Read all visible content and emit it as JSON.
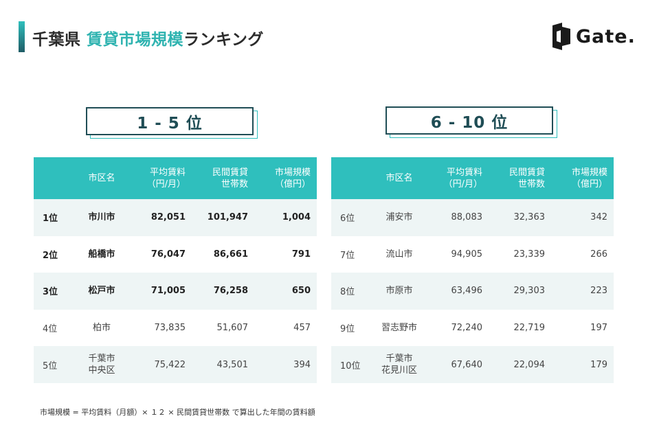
{
  "header": {
    "title_prefix": "千葉県",
    "title_highlight": "賃貸市場規模",
    "title_suffix": "ランキング",
    "logo_text": "Gate."
  },
  "colors": {
    "accent": "#2fbfbd",
    "dark": "#1f4d55",
    "row_alt": "#eef5f5"
  },
  "columns": {
    "city": "市区名",
    "rent_line1": "平均賃料",
    "rent_line2": "（円/月）",
    "households_line1": "民間賃貸",
    "households_line2": "世帯数",
    "market_line1": "市場規模",
    "market_line2": "（億円）"
  },
  "left_section": {
    "label": "1 - 5 位",
    "rows": [
      {
        "rank": "1位",
        "city_line1": "市川市",
        "city_line2": "",
        "rent": "82,051",
        "households": "101,947",
        "market": "1,004"
      },
      {
        "rank": "2位",
        "city_line1": "船橋市",
        "city_line2": "",
        "rent": "76,047",
        "households": "86,661",
        "market": "791"
      },
      {
        "rank": "3位",
        "city_line1": "松戸市",
        "city_line2": "",
        "rent": "71,005",
        "households": "76,258",
        "market": "650"
      },
      {
        "rank": "4位",
        "city_line1": "柏市",
        "city_line2": "",
        "rent": "73,835",
        "households": "51,607",
        "market": "457"
      },
      {
        "rank": "5位",
        "city_line1": "千葉市",
        "city_line2": "中央区",
        "rent": "75,422",
        "households": "43,501",
        "market": "394"
      }
    ]
  },
  "right_section": {
    "label": "6 - 10 位",
    "rows": [
      {
        "rank": "6位",
        "city_line1": "浦安市",
        "city_line2": "",
        "rent": "88,083",
        "households": "32,363",
        "market": "342"
      },
      {
        "rank": "7位",
        "city_line1": "流山市",
        "city_line2": "",
        "rent": "94,905",
        "households": "23,339",
        "market": "266"
      },
      {
        "rank": "8位",
        "city_line1": "市原市",
        "city_line2": "",
        "rent": "63,496",
        "households": "29,303",
        "market": "223"
      },
      {
        "rank": "9位",
        "city_line1": "習志野市",
        "city_line2": "",
        "rent": "72,240",
        "households": "22,719",
        "market": "197"
      },
      {
        "rank": "10位",
        "city_line1": "千葉市",
        "city_line2": "花見川区",
        "rent": "67,640",
        "households": "22,094",
        "market": "179"
      }
    ]
  },
  "footnote": "市場規模 = 平均賃料（月額）× １２ × 民間賃貸世帯数 で算出した年間の賃料額"
}
